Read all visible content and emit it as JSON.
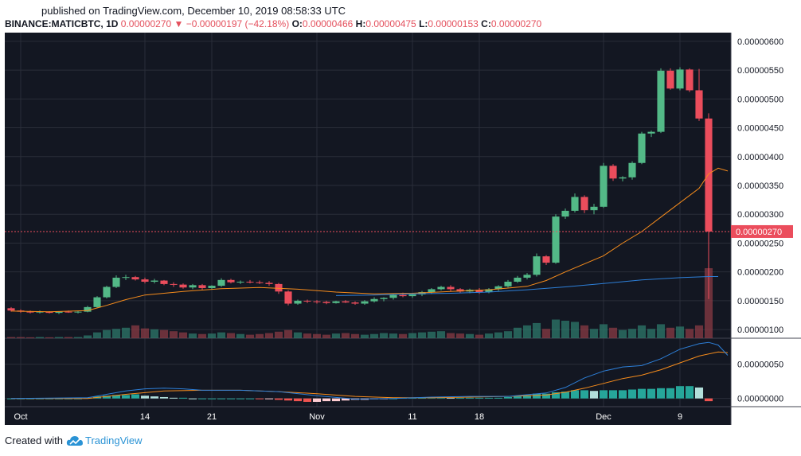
{
  "published": "published on TradingView.com, December 10, 2019 08:58:33 UTC",
  "header": {
    "symbol": "BINANCE:MATICBTC, 1D",
    "last": "0.00000270",
    "arrow": "▼",
    "change": "−0.00000197 (−42.18%)",
    "o_label": "O:",
    "o_value": "0.00000466",
    "h_label": "H:",
    "h_value": "0.00000475",
    "l_label": "L:",
    "l_value": "0.00000153",
    "c_label": "C:",
    "c_value": "0.00000270"
  },
  "footer": {
    "created": "Created with",
    "brand": "TradingView",
    "icon": "tradingview-cloud-icon"
  },
  "colors": {
    "up": "#53b987",
    "down": "#eb4d5c",
    "bg": "#131722",
    "grid": "#2a2e39",
    "ma_fast": "#f68c1c",
    "ma_slow": "#2d7fd8",
    "axis_text": "#ffffff"
  },
  "chart_data": {
    "type": "candlestick",
    "price_axis": {
      "ticks": [
        "0.00000100",
        "0.00000150",
        "0.00000200",
        "0.00000250",
        "0.00000300",
        "0.00000350",
        "0.00000400",
        "0.00000450",
        "0.00000500",
        "0.00000550",
        "0.00000600"
      ],
      "last_price_label": "0.00000270",
      "range_e8": [
        85,
        615
      ]
    },
    "macd_axis": {
      "ticks": [
        "0.00000000",
        "0.00000050"
      ],
      "range_e8": [
        -12,
        88
      ]
    },
    "time_axis": [
      {
        "label": "Oct",
        "index": 1
      },
      {
        "label": "14",
        "index": 14
      },
      {
        "label": "21",
        "index": 21
      },
      {
        "label": "Nov",
        "index": 32
      },
      {
        "label": "11",
        "index": 42
      },
      {
        "label": "18",
        "index": 49
      },
      {
        "label": "Dec",
        "index": 62
      },
      {
        "label": "9",
        "index": 70
      }
    ],
    "ohlc_e8": [
      [
        137,
        139,
        131,
        133
      ],
      [
        133,
        135,
        129,
        131
      ],
      [
        131,
        133,
        128,
        130
      ],
      [
        130,
        133,
        128,
        131
      ],
      [
        131,
        132,
        128,
        129
      ],
      [
        129,
        132,
        127,
        131
      ],
      [
        131,
        133,
        129,
        130
      ],
      [
        130,
        132,
        128,
        131
      ],
      [
        131,
        141,
        130,
        139
      ],
      [
        139,
        158,
        138,
        156
      ],
      [
        156,
        176,
        154,
        174
      ],
      [
        174,
        194,
        172,
        190
      ],
      [
        190,
        195,
        186,
        191
      ],
      [
        191,
        193,
        185,
        187
      ],
      [
        187,
        190,
        180,
        183
      ],
      [
        183,
        188,
        180,
        185
      ],
      [
        185,
        186,
        177,
        179
      ],
      [
        179,
        182,
        174,
        178
      ],
      [
        178,
        180,
        171,
        173
      ],
      [
        173,
        179,
        170,
        177
      ],
      [
        177,
        179,
        169,
        172
      ],
      [
        172,
        177,
        170,
        176
      ],
      [
        176,
        189,
        174,
        186
      ],
      [
        186,
        188,
        180,
        182
      ],
      [
        182,
        185,
        179,
        183
      ],
      [
        183,
        186,
        180,
        182
      ],
      [
        182,
        185,
        179,
        181
      ],
      [
        181,
        184,
        176,
        179
      ],
      [
        179,
        181,
        162,
        166
      ],
      [
        166,
        168,
        142,
        145
      ],
      [
        145,
        152,
        143,
        150
      ],
      [
        150,
        152,
        146,
        149
      ],
      [
        149,
        151,
        145,
        148
      ],
      [
        148,
        150,
        144,
        146
      ],
      [
        146,
        150,
        145,
        149
      ],
      [
        149,
        151,
        146,
        147
      ],
      [
        147,
        149,
        143,
        145
      ],
      [
        145,
        151,
        143,
        149
      ],
      [
        149,
        156,
        147,
        153
      ],
      [
        153,
        156,
        149,
        155
      ],
      [
        155,
        162,
        152,
        160
      ],
      [
        160,
        164,
        156,
        158
      ],
      [
        158,
        163,
        155,
        161
      ],
      [
        161,
        167,
        158,
        165
      ],
      [
        165,
        172,
        162,
        170
      ],
      [
        170,
        176,
        168,
        174
      ],
      [
        174,
        177,
        166,
        170
      ],
      [
        170,
        172,
        163,
        166
      ],
      [
        166,
        171,
        163,
        169
      ],
      [
        169,
        172,
        162,
        165
      ],
      [
        165,
        172,
        163,
        170
      ],
      [
        170,
        177,
        167,
        175
      ],
      [
        175,
        186,
        173,
        183
      ],
      [
        183,
        193,
        181,
        190
      ],
      [
        190,
        198,
        187,
        195
      ],
      [
        195,
        232,
        192,
        227
      ],
      [
        227,
        229,
        212,
        216
      ],
      [
        216,
        300,
        214,
        296
      ],
      [
        296,
        310,
        292,
        306
      ],
      [
        306,
        336,
        303,
        330
      ],
      [
        330,
        333,
        302,
        307
      ],
      [
        307,
        318,
        300,
        313
      ],
      [
        313,
        389,
        311,
        384
      ],
      [
        384,
        387,
        358,
        362
      ],
      [
        362,
        366,
        357,
        364
      ],
      [
        364,
        392,
        360,
        389
      ],
      [
        389,
        443,
        387,
        440
      ],
      [
        440,
        445,
        434,
        443
      ],
      [
        443,
        553,
        441,
        549
      ],
      [
        549,
        553,
        516,
        518
      ],
      [
        518,
        555,
        515,
        551
      ],
      [
        551,
        553,
        512,
        515
      ],
      [
        515,
        552,
        462,
        466
      ],
      [
        466,
        475,
        153,
        270
      ]
    ],
    "ma_fast_e8": [
      [
        0,
        132
      ],
      [
        4,
        131
      ],
      [
        8,
        133
      ],
      [
        10,
        142
      ],
      [
        12,
        152
      ],
      [
        14,
        160
      ],
      [
        18,
        166
      ],
      [
        22,
        171
      ],
      [
        26,
        173
      ],
      [
        30,
        170
      ],
      [
        34,
        165
      ],
      [
        38,
        162
      ],
      [
        42,
        163
      ],
      [
        46,
        166
      ],
      [
        50,
        169
      ],
      [
        54,
        175
      ],
      [
        56,
        185
      ],
      [
        58,
        200
      ],
      [
        62,
        228
      ],
      [
        64,
        250
      ],
      [
        66,
        270
      ],
      [
        68,
        295
      ],
      [
        70,
        320
      ],
      [
        72,
        345
      ],
      [
        73,
        370
      ],
      [
        74,
        380
      ],
      [
        75,
        375
      ]
    ],
    "ma_slow_e8": [
      [
        34,
        159
      ],
      [
        38,
        160
      ],
      [
        42,
        162
      ],
      [
        46,
        163
      ],
      [
        50,
        165
      ],
      [
        54,
        169
      ],
      [
        58,
        174
      ],
      [
        62,
        180
      ],
      [
        66,
        186
      ],
      [
        70,
        190
      ],
      [
        73,
        192
      ],
      [
        74,
        192
      ]
    ],
    "volume_rel": [
      0.05,
      0.05,
      0.04,
      0.05,
      0.04,
      0.05,
      0.05,
      0.05,
      0.12,
      0.25,
      0.35,
      0.4,
      0.45,
      0.55,
      0.42,
      0.38,
      0.35,
      0.3,
      0.25,
      0.2,
      0.18,
      0.2,
      0.25,
      0.22,
      0.18,
      0.15,
      0.18,
      0.22,
      0.28,
      0.35,
      0.25,
      0.2,
      0.18,
      0.15,
      0.2,
      0.22,
      0.18,
      0.15,
      0.18,
      0.22,
      0.2,
      0.18,
      0.22,
      0.25,
      0.28,
      0.3,
      0.22,
      0.2,
      0.18,
      0.15,
      0.2,
      0.25,
      0.3,
      0.45,
      0.55,
      0.65,
      0.4,
      0.8,
      0.75,
      0.7,
      0.55,
      0.4,
      0.6,
      0.45,
      0.35,
      0.4,
      0.55,
      0.4,
      0.6,
      0.45,
      0.5,
      0.4,
      0.55,
      3.0
    ],
    "volume_max_rel": 3.0,
    "macd_line_e8": [
      [
        0,
        0
      ],
      [
        8,
        1
      ],
      [
        10,
        6
      ],
      [
        12,
        11
      ],
      [
        14,
        14
      ],
      [
        16,
        15
      ],
      [
        18,
        14
      ],
      [
        20,
        12
      ],
      [
        24,
        12
      ],
      [
        28,
        10
      ],
      [
        32,
        4
      ],
      [
        36,
        -1
      ],
      [
        40,
        0
      ],
      [
        44,
        2
      ],
      [
        48,
        3
      ],
      [
        52,
        3
      ],
      [
        56,
        8
      ],
      [
        58,
        16
      ],
      [
        60,
        30
      ],
      [
        62,
        40
      ],
      [
        64,
        46
      ],
      [
        66,
        48
      ],
      [
        68,
        58
      ],
      [
        70,
        72
      ],
      [
        72,
        80
      ],
      [
        73,
        82
      ],
      [
        74,
        78
      ],
      [
        75,
        63
      ]
    ],
    "signal_line_e8": [
      [
        0,
        0
      ],
      [
        8,
        0
      ],
      [
        12,
        6
      ],
      [
        16,
        11
      ],
      [
        20,
        12
      ],
      [
        24,
        12
      ],
      [
        28,
        10
      ],
      [
        32,
        7
      ],
      [
        36,
        3
      ],
      [
        40,
        1
      ],
      [
        44,
        1
      ],
      [
        48,
        2
      ],
      [
        52,
        3
      ],
      [
        56,
        5
      ],
      [
        58,
        9
      ],
      [
        60,
        15
      ],
      [
        62,
        22
      ],
      [
        64,
        29
      ],
      [
        66,
        34
      ],
      [
        68,
        42
      ],
      [
        70,
        52
      ],
      [
        72,
        62
      ],
      [
        74,
        68
      ],
      [
        75,
        67
      ]
    ],
    "macd_hist_e8": [
      0,
      0,
      0,
      0,
      0,
      0,
      0,
      0,
      1,
      3,
      4,
      5,
      5,
      6,
      4,
      3,
      2,
      1,
      1,
      0,
      0,
      0,
      0,
      0,
      0,
      0,
      -1,
      -1,
      -2,
      -3,
      -4,
      -5,
      -5,
      -4,
      -4,
      -3,
      -2,
      -2,
      -1,
      -1,
      0,
      1,
      1,
      1,
      2,
      2,
      1,
      1,
      1,
      1,
      1,
      1,
      2,
      3,
      5,
      7,
      7,
      9,
      10,
      12,
      12,
      11,
      12,
      12,
      12,
      13,
      14,
      14,
      15,
      15,
      18,
      18,
      16,
      -4
    ]
  }
}
